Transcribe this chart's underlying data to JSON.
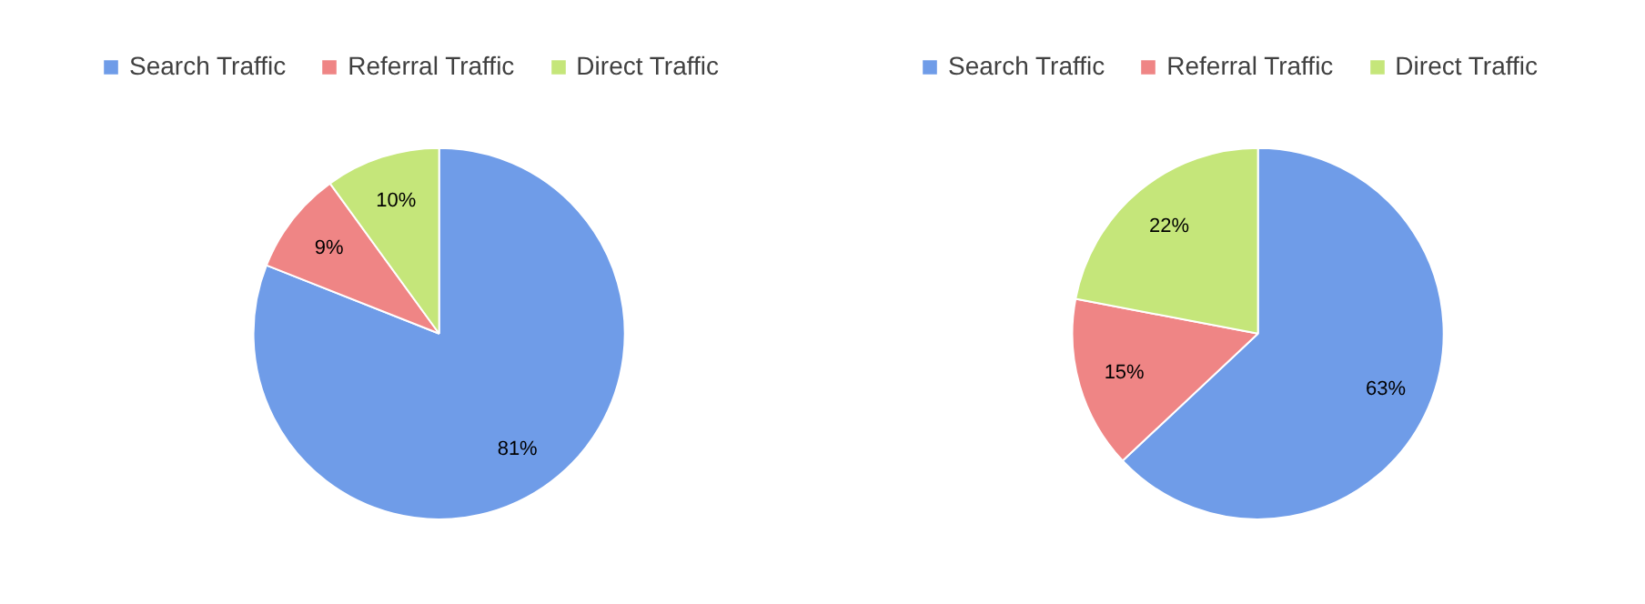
{
  "chart_data": [
    {
      "type": "pie",
      "categories": [
        "Search Traffic",
        "Referral Traffic",
        "Direct Traffic"
      ],
      "values": [
        81,
        9,
        10
      ],
      "colors": [
        "#6f9ce8",
        "#ef8585",
        "#c5e67a"
      ],
      "value_labels": [
        "81%",
        "9%",
        "10%"
      ],
      "legend": "top"
    },
    {
      "type": "pie",
      "categories": [
        "Search Traffic",
        "Referral Traffic",
        "Direct Traffic"
      ],
      "values": [
        63,
        15,
        22
      ],
      "colors": [
        "#6f9ce8",
        "#ef8585",
        "#c5e67a"
      ],
      "value_labels": [
        "63%",
        "15%",
        "22%"
      ],
      "legend": "top"
    }
  ]
}
